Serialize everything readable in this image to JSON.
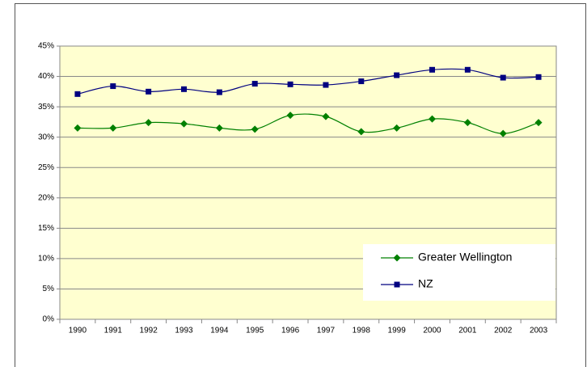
{
  "chart_data": {
    "type": "line",
    "categories": [
      "1990",
      "1991",
      "1992",
      "1993",
      "1994",
      "1995",
      "1996",
      "1997",
      "1998",
      "1999",
      "2000",
      "2001",
      "2002",
      "2003"
    ],
    "series": [
      {
        "name": "Greater Wellington",
        "color": "#008000",
        "marker": "diamond",
        "values": [
          31.5,
          31.5,
          32.4,
          32.2,
          31.5,
          31.3,
          33.6,
          33.4,
          30.9,
          31.5,
          33.0,
          32.4,
          30.6,
          32.4
        ]
      },
      {
        "name": "NZ",
        "color": "#000080",
        "marker": "square",
        "values": [
          37.1,
          38.4,
          37.5,
          37.9,
          37.4,
          38.8,
          38.7,
          38.6,
          39.2,
          40.2,
          41.1,
          41.1,
          39.8,
          39.9
        ]
      }
    ],
    "ylim": [
      0,
      45
    ],
    "yticks": [
      {
        "value": 0,
        "label": "0%"
      },
      {
        "value": 5,
        "label": "5%"
      },
      {
        "value": 10,
        "label": "10%"
      },
      {
        "value": 15,
        "label": "15%"
      },
      {
        "value": 20,
        "label": "20%"
      },
      {
        "value": 25,
        "label": "25%"
      },
      {
        "value": 30,
        "label": "30%"
      },
      {
        "value": 35,
        "label": "35%"
      },
      {
        "value": 40,
        "label": "40%"
      },
      {
        "value": 45,
        "label": "45%"
      }
    ],
    "grid": true,
    "smooth": true,
    "legend": "lower right",
    "background": "#ffffd0"
  }
}
